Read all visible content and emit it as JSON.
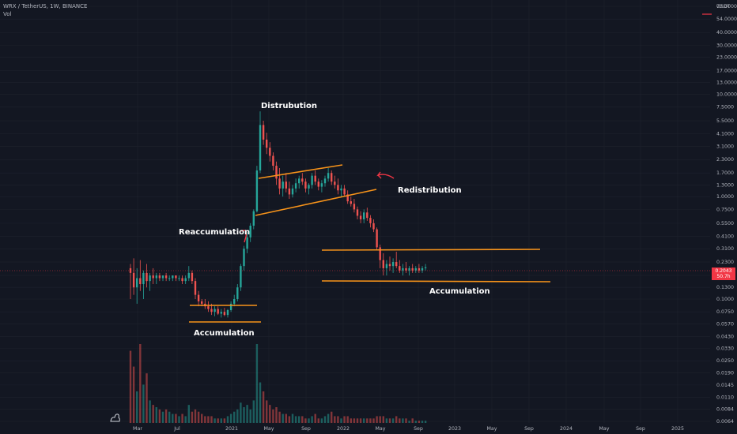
{
  "legend": {
    "symbol": "WRX / TetherUS, 1W, BINANCE",
    "volume_label": "Vol"
  },
  "currency": "USDT",
  "current_price": "0.2043",
  "price_timer": "50.7h",
  "colors": {
    "background": "#131722",
    "up": "#26a69a",
    "down": "#ef5350",
    "lines": "#f7931a",
    "price_line": "#f23645"
  },
  "chart_data": {
    "type": "candlestick",
    "scale": "log",
    "ylim": [
      0.0064,
      72
    ],
    "price_ticks": [
      "72.0000",
      "54.0000",
      "40.0000",
      "30.0000",
      "23.0000",
      "17.0000",
      "13.0000",
      "10.0000",
      "7.5000",
      "5.5000",
      "4.1000",
      "3.1000",
      "2.3000",
      "1.7000",
      "1.3000",
      "1.0000",
      "0.7500",
      "0.5500",
      "0.4100",
      "0.3100",
      "0.2300",
      "0.1700",
      "0.1300",
      "0.1000",
      "0.0750",
      "0.0570",
      "0.0430",
      "0.0330",
      "0.0250",
      "0.0190",
      "0.0145",
      "0.0110",
      "0.0084",
      "0.0064"
    ],
    "time_labels": [
      "Mar",
      "Jul",
      "2021",
      "May",
      "Sep",
      "2022",
      "May",
      "Sep",
      "2023",
      "May",
      "Sep",
      "2024",
      "May",
      "Sep",
      "2025"
    ],
    "annotations": [
      "Distrubution",
      "Redistribution",
      "Reaccumulation",
      "Accumulation",
      "Accumulation"
    ],
    "candles": [
      {
        "t": 0,
        "o": 0.2,
        "h": 0.22,
        "l": 0.1,
        "c": 0.18,
        "v": 32
      },
      {
        "t": 1,
        "o": 0.18,
        "h": 0.25,
        "l": 0.11,
        "c": 0.13,
        "v": 25
      },
      {
        "t": 2,
        "o": 0.13,
        "h": 0.2,
        "l": 0.09,
        "c": 0.16,
        "v": 14
      },
      {
        "t": 3,
        "o": 0.16,
        "h": 0.24,
        "l": 0.12,
        "c": 0.14,
        "v": 35
      },
      {
        "t": 4,
        "o": 0.14,
        "h": 0.19,
        "l": 0.1,
        "c": 0.18,
        "v": 17
      },
      {
        "t": 5,
        "o": 0.18,
        "h": 0.22,
        "l": 0.13,
        "c": 0.15,
        "v": 22
      },
      {
        "t": 6,
        "o": 0.15,
        "h": 0.18,
        "l": 0.12,
        "c": 0.17,
        "v": 10
      },
      {
        "t": 7,
        "o": 0.17,
        "h": 0.2,
        "l": 0.14,
        "c": 0.16,
        "v": 8
      },
      {
        "t": 8,
        "o": 0.16,
        "h": 0.18,
        "l": 0.14,
        "c": 0.17,
        "v": 7
      },
      {
        "t": 9,
        "o": 0.17,
        "h": 0.18,
        "l": 0.15,
        "c": 0.16,
        "v": 6
      },
      {
        "t": 10,
        "o": 0.16,
        "h": 0.17,
        "l": 0.15,
        "c": 0.17,
        "v": 5
      },
      {
        "t": 11,
        "o": 0.17,
        "h": 0.18,
        "l": 0.15,
        "c": 0.16,
        "v": 6
      },
      {
        "t": 12,
        "o": 0.16,
        "h": 0.17,
        "l": 0.15,
        "c": 0.16,
        "v": 5
      },
      {
        "t": 13,
        "o": 0.16,
        "h": 0.17,
        "l": 0.15,
        "c": 0.17,
        "v": 4
      },
      {
        "t": 14,
        "o": 0.17,
        "h": 0.17,
        "l": 0.15,
        "c": 0.16,
        "v": 4
      },
      {
        "t": 15,
        "o": 0.16,
        "h": 0.17,
        "l": 0.15,
        "c": 0.16,
        "v": 3
      },
      {
        "t": 16,
        "o": 0.16,
        "h": 0.17,
        "l": 0.14,
        "c": 0.15,
        "v": 4
      },
      {
        "t": 17,
        "o": 0.15,
        "h": 0.17,
        "l": 0.14,
        "c": 0.16,
        "v": 3
      },
      {
        "t": 18,
        "o": 0.16,
        "h": 0.21,
        "l": 0.15,
        "c": 0.18,
        "v": 8
      },
      {
        "t": 19,
        "o": 0.18,
        "h": 0.19,
        "l": 0.14,
        "c": 0.15,
        "v": 5
      },
      {
        "t": 20,
        "o": 0.15,
        "h": 0.16,
        "l": 0.1,
        "c": 0.11,
        "v": 6
      },
      {
        "t": 21,
        "o": 0.11,
        "h": 0.12,
        "l": 0.085,
        "c": 0.095,
        "v": 5
      },
      {
        "t": 22,
        "o": 0.095,
        "h": 0.1,
        "l": 0.085,
        "c": 0.09,
        "v": 4
      },
      {
        "t": 23,
        "o": 0.09,
        "h": 0.1,
        "l": 0.08,
        "c": 0.085,
        "v": 3
      },
      {
        "t": 24,
        "o": 0.085,
        "h": 0.095,
        "l": 0.075,
        "c": 0.08,
        "v": 3
      },
      {
        "t": 25,
        "o": 0.08,
        "h": 0.09,
        "l": 0.07,
        "c": 0.075,
        "v": 3
      },
      {
        "t": 26,
        "o": 0.075,
        "h": 0.085,
        "l": 0.068,
        "c": 0.08,
        "v": 2
      },
      {
        "t": 27,
        "o": 0.08,
        "h": 0.085,
        "l": 0.07,
        "c": 0.072,
        "v": 2
      },
      {
        "t": 28,
        "o": 0.072,
        "h": 0.08,
        "l": 0.066,
        "c": 0.075,
        "v": 2
      },
      {
        "t": 29,
        "o": 0.075,
        "h": 0.082,
        "l": 0.068,
        "c": 0.07,
        "v": 2
      },
      {
        "t": 30,
        "o": 0.07,
        "h": 0.08,
        "l": 0.066,
        "c": 0.078,
        "v": 3
      },
      {
        "t": 31,
        "o": 0.078,
        "h": 0.095,
        "l": 0.075,
        "c": 0.09,
        "v": 4
      },
      {
        "t": 32,
        "o": 0.09,
        "h": 0.11,
        "l": 0.085,
        "c": 0.1,
        "v": 5
      },
      {
        "t": 33,
        "o": 0.1,
        "h": 0.14,
        "l": 0.095,
        "c": 0.13,
        "v": 6
      },
      {
        "t": 34,
        "o": 0.13,
        "h": 0.22,
        "l": 0.12,
        "c": 0.21,
        "v": 9
      },
      {
        "t": 35,
        "o": 0.21,
        "h": 0.33,
        "l": 0.19,
        "c": 0.31,
        "v": 7
      },
      {
        "t": 36,
        "o": 0.31,
        "h": 0.45,
        "l": 0.28,
        "c": 0.4,
        "v": 8
      },
      {
        "t": 37,
        "o": 0.4,
        "h": 0.55,
        "l": 0.36,
        "c": 0.52,
        "v": 6
      },
      {
        "t": 38,
        "o": 0.52,
        "h": 0.75,
        "l": 0.48,
        "c": 0.72,
        "v": 10
      },
      {
        "t": 39,
        "o": 0.72,
        "h": 2.0,
        "l": 0.7,
        "c": 1.8,
        "v": 35
      },
      {
        "t": 40,
        "o": 1.8,
        "h": 6.8,
        "l": 1.7,
        "c": 5.0,
        "v": 18
      },
      {
        "t": 41,
        "o": 5.0,
        "h": 5.5,
        "l": 3.2,
        "c": 3.6,
        "v": 14
      },
      {
        "t": 42,
        "o": 3.6,
        "h": 4.2,
        "l": 2.6,
        "c": 3.0,
        "v": 10
      },
      {
        "t": 43,
        "o": 3.0,
        "h": 3.4,
        "l": 2.2,
        "c": 2.5,
        "v": 8
      },
      {
        "t": 44,
        "o": 2.5,
        "h": 2.7,
        "l": 1.8,
        "c": 2.0,
        "v": 6
      },
      {
        "t": 45,
        "o": 2.0,
        "h": 2.2,
        "l": 1.3,
        "c": 1.5,
        "v": 7
      },
      {
        "t": 46,
        "o": 1.5,
        "h": 1.9,
        "l": 1.05,
        "c": 1.2,
        "v": 5
      },
      {
        "t": 47,
        "o": 1.2,
        "h": 1.6,
        "l": 1.0,
        "c": 1.4,
        "v": 4
      },
      {
        "t": 48,
        "o": 1.4,
        "h": 1.7,
        "l": 1.1,
        "c": 1.2,
        "v": 4
      },
      {
        "t": 49,
        "o": 1.2,
        "h": 1.4,
        "l": 0.95,
        "c": 1.05,
        "v": 3
      },
      {
        "t": 50,
        "o": 1.05,
        "h": 1.3,
        "l": 0.98,
        "c": 1.2,
        "v": 4
      },
      {
        "t": 51,
        "o": 1.2,
        "h": 1.5,
        "l": 1.1,
        "c": 1.35,
        "v": 3
      },
      {
        "t": 52,
        "o": 1.35,
        "h": 1.6,
        "l": 1.2,
        "c": 1.5,
        "v": 3
      },
      {
        "t": 53,
        "o": 1.5,
        "h": 1.7,
        "l": 1.3,
        "c": 1.4,
        "v": 3
      },
      {
        "t": 54,
        "o": 1.4,
        "h": 1.5,
        "l": 1.1,
        "c": 1.2,
        "v": 2
      },
      {
        "t": 55,
        "o": 1.2,
        "h": 1.35,
        "l": 1.05,
        "c": 1.3,
        "v": 2
      },
      {
        "t": 56,
        "o": 1.3,
        "h": 1.7,
        "l": 1.2,
        "c": 1.6,
        "v": 3
      },
      {
        "t": 57,
        "o": 1.6,
        "h": 1.8,
        "l": 1.3,
        "c": 1.4,
        "v": 4
      },
      {
        "t": 58,
        "o": 1.4,
        "h": 1.5,
        "l": 1.15,
        "c": 1.25,
        "v": 2
      },
      {
        "t": 59,
        "o": 1.25,
        "h": 1.45,
        "l": 1.1,
        "c": 1.35,
        "v": 2
      },
      {
        "t": 60,
        "o": 1.35,
        "h": 1.6,
        "l": 1.25,
        "c": 1.5,
        "v": 3
      },
      {
        "t": 61,
        "o": 1.5,
        "h": 1.9,
        "l": 1.4,
        "c": 1.7,
        "v": 4
      },
      {
        "t": 62,
        "o": 1.7,
        "h": 1.8,
        "l": 1.3,
        "c": 1.4,
        "v": 5
      },
      {
        "t": 63,
        "o": 1.4,
        "h": 1.6,
        "l": 1.2,
        "c": 1.3,
        "v": 3
      },
      {
        "t": 64,
        "o": 1.3,
        "h": 1.5,
        "l": 1.05,
        "c": 1.15,
        "v": 3
      },
      {
        "t": 65,
        "o": 1.15,
        "h": 1.3,
        "l": 1.0,
        "c": 1.2,
        "v": 2
      },
      {
        "t": 66,
        "o": 1.2,
        "h": 1.3,
        "l": 1.0,
        "c": 1.05,
        "v": 3
      },
      {
        "t": 67,
        "o": 1.05,
        "h": 1.15,
        "l": 0.85,
        "c": 0.9,
        "v": 3
      },
      {
        "t": 68,
        "o": 0.9,
        "h": 1.0,
        "l": 0.8,
        "c": 0.85,
        "v": 2
      },
      {
        "t": 69,
        "o": 0.85,
        "h": 0.95,
        "l": 0.7,
        "c": 0.75,
        "v": 2
      },
      {
        "t": 70,
        "o": 0.75,
        "h": 0.8,
        "l": 0.6,
        "c": 0.65,
        "v": 2
      },
      {
        "t": 71,
        "o": 0.65,
        "h": 0.72,
        "l": 0.55,
        "c": 0.6,
        "v": 2
      },
      {
        "t": 72,
        "o": 0.6,
        "h": 0.75,
        "l": 0.55,
        "c": 0.7,
        "v": 2
      },
      {
        "t": 73,
        "o": 0.7,
        "h": 0.78,
        "l": 0.58,
        "c": 0.62,
        "v": 2
      },
      {
        "t": 74,
        "o": 0.62,
        "h": 0.66,
        "l": 0.5,
        "c": 0.55,
        "v": 2
      },
      {
        "t": 75,
        "o": 0.55,
        "h": 0.6,
        "l": 0.45,
        "c": 0.48,
        "v": 2
      },
      {
        "t": 76,
        "o": 0.48,
        "h": 0.5,
        "l": 0.3,
        "c": 0.32,
        "v": 3
      },
      {
        "t": 77,
        "o": 0.32,
        "h": 0.34,
        "l": 0.2,
        "c": 0.24,
        "v": 3
      },
      {
        "t": 78,
        "o": 0.24,
        "h": 0.28,
        "l": 0.17,
        "c": 0.2,
        "v": 3
      },
      {
        "t": 79,
        "o": 0.2,
        "h": 0.24,
        "l": 0.17,
        "c": 0.22,
        "v": 2
      },
      {
        "t": 80,
        "o": 0.22,
        "h": 0.26,
        "l": 0.19,
        "c": 0.21,
        "v": 2
      },
      {
        "t": 81,
        "o": 0.21,
        "h": 0.25,
        "l": 0.18,
        "c": 0.23,
        "v": 2
      },
      {
        "t": 82,
        "o": 0.23,
        "h": 0.29,
        "l": 0.2,
        "c": 0.21,
        "v": 3
      },
      {
        "t": 83,
        "o": 0.21,
        "h": 0.24,
        "l": 0.18,
        "c": 0.19,
        "v": 2
      },
      {
        "t": 84,
        "o": 0.19,
        "h": 0.22,
        "l": 0.17,
        "c": 0.2,
        "v": 2
      },
      {
        "t": 85,
        "o": 0.2,
        "h": 0.23,
        "l": 0.18,
        "c": 0.19,
        "v": 2
      },
      {
        "t": 86,
        "o": 0.19,
        "h": 0.21,
        "l": 0.17,
        "c": 0.2,
        "v": 1
      },
      {
        "t": 87,
        "o": 0.2,
        "h": 0.22,
        "l": 0.18,
        "c": 0.19,
        "v": 2
      },
      {
        "t": 88,
        "o": 0.19,
        "h": 0.21,
        "l": 0.18,
        "c": 0.2,
        "v": 1
      },
      {
        "t": 89,
        "o": 0.2,
        "h": 0.22,
        "l": 0.18,
        "c": 0.19,
        "v": 1
      },
      {
        "t": 90,
        "o": 0.19,
        "h": 0.21,
        "l": 0.18,
        "c": 0.2,
        "v": 1
      },
      {
        "t": 91,
        "o": 0.2,
        "h": 0.22,
        "l": 0.19,
        "c": 0.2043,
        "v": 1
      }
    ]
  }
}
